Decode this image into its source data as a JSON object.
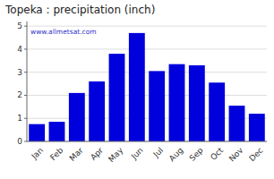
{
  "chart_data": {
    "type": "bar",
    "title": "Topeka : precipitation (inch)",
    "categories": [
      "Jan",
      "Feb",
      "Mar",
      "Apr",
      "May",
      "Jun",
      "Jul",
      "Aug",
      "Sep",
      "Oct",
      "Nov",
      "Dec"
    ],
    "values": [
      0.75,
      0.85,
      2.1,
      2.6,
      3.8,
      4.7,
      3.05,
      3.35,
      3.3,
      2.55,
      1.55,
      1.2
    ],
    "color": "#0000DD",
    "ylim": [
      0,
      5.2
    ],
    "yticks": [
      0,
      1,
      2,
      3,
      4,
      5
    ],
    "grid": true,
    "annotation": "www.allmetsat.com"
  }
}
